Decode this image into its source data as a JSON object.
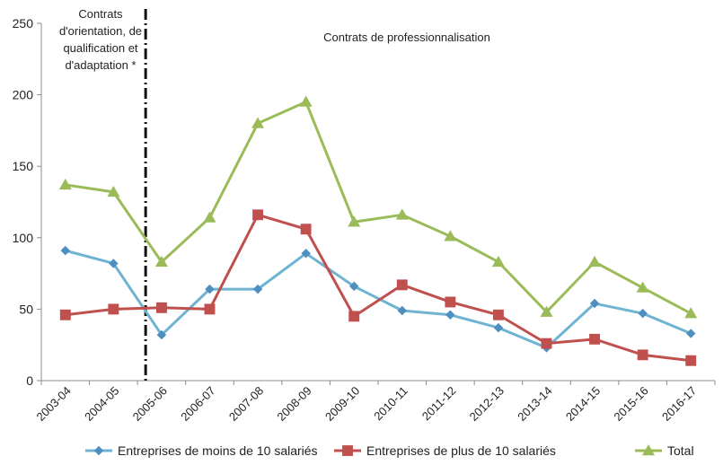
{
  "chart_data": {
    "type": "line",
    "title": "",
    "xlabel": "",
    "ylabel": "",
    "categories": [
      "2003-04",
      "2004-05",
      "2005-06",
      "2006-07",
      "2007-08",
      "2008-09",
      "2009-10",
      "2010-11",
      "2011-12",
      "2012-13",
      "2013-14",
      "2014-15",
      "2015-16",
      "2016-17"
    ],
    "ylim": [
      0,
      250
    ],
    "yticks": [
      "0",
      "50",
      "100",
      "150",
      "200",
      "250"
    ],
    "grid": false,
    "legend_position": "bottom",
    "series": [
      {
        "name": "Entreprises de moins de 10 salariés",
        "color": "#6fb3d2",
        "marker": "diamond",
        "marker_color": "#4f8fbf",
        "values": [
          91,
          82,
          32,
          64,
          64,
          89,
          66,
          49,
          46,
          37,
          23,
          54,
          47,
          33
        ]
      },
      {
        "name": "Entreprises de plus de 10 salariés",
        "color": "#c0504d",
        "marker": "square",
        "marker_color": "#c0504d",
        "values": [
          46,
          50,
          51,
          50,
          116,
          106,
          45,
          67,
          55,
          46,
          26,
          29,
          18,
          14
        ]
      },
      {
        "name": "Total",
        "color": "#9bbb59",
        "marker": "triangle",
        "marker_color": "#9bbb59",
        "values": [
          137,
          132,
          83,
          114,
          180,
          195,
          111,
          116,
          101,
          83,
          48,
          83,
          65,
          47
        ]
      }
    ],
    "divider_after_category": "2005-06",
    "annotations": {
      "left": [
        "Contrats",
        "d'orientation, de",
        "qualification et",
        "d'adaptation *"
      ],
      "right": "Contrats de professionnalisation"
    }
  }
}
